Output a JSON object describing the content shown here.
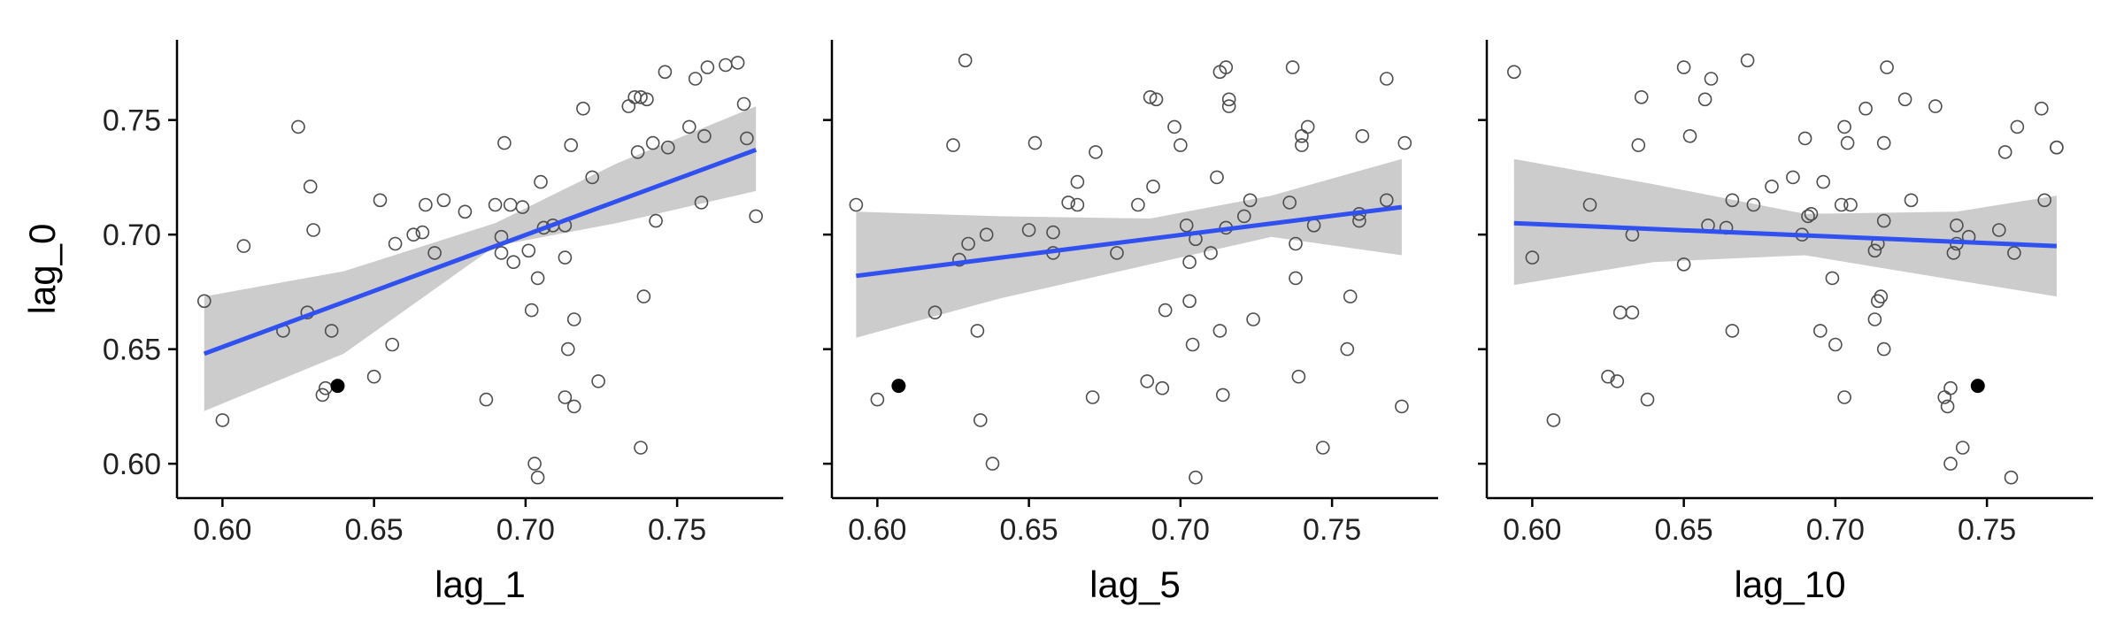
{
  "chart_data": [
    {
      "type": "scatter",
      "xlabel": "lag_1",
      "ylabel": "lag_0",
      "xlim": [
        0.585,
        0.785
      ],
      "ylim": [
        0.585,
        0.785
      ],
      "x_ticks": [
        "0.60",
        "0.65",
        "0.70",
        "0.75"
      ],
      "y_ticks": [
        "0.60",
        "0.65",
        "0.70",
        "0.75"
      ],
      "grid": false,
      "colors": {
        "points": "#4d4d4d",
        "highlight": "#000000",
        "fit": "#3050f0",
        "ribbon": "#cccccc"
      },
      "points": [
        [
          0.594,
          0.671
        ],
        [
          0.6,
          0.619
        ],
        [
          0.607,
          0.695
        ],
        [
          0.62,
          0.658
        ],
        [
          0.625,
          0.747
        ],
        [
          0.628,
          0.666
        ],
        [
          0.629,
          0.721
        ],
        [
          0.63,
          0.702
        ],
        [
          0.633,
          0.63
        ],
        [
          0.634,
          0.633
        ],
        [
          0.636,
          0.658
        ],
        [
          0.65,
          0.638
        ],
        [
          0.652,
          0.715
        ],
        [
          0.656,
          0.652
        ],
        [
          0.657,
          0.696
        ],
        [
          0.663,
          0.7
        ],
        [
          0.666,
          0.701
        ],
        [
          0.667,
          0.713
        ],
        [
          0.67,
          0.692
        ],
        [
          0.673,
          0.715
        ],
        [
          0.68,
          0.71
        ],
        [
          0.687,
          0.628
        ],
        [
          0.69,
          0.713
        ],
        [
          0.692,
          0.692
        ],
        [
          0.692,
          0.699
        ],
        [
          0.693,
          0.74
        ],
        [
          0.695,
          0.713
        ],
        [
          0.696,
          0.688
        ],
        [
          0.699,
          0.712
        ],
        [
          0.701,
          0.693
        ],
        [
          0.702,
          0.667
        ],
        [
          0.703,
          0.6
        ],
        [
          0.704,
          0.681
        ],
        [
          0.704,
          0.594
        ],
        [
          0.705,
          0.723
        ],
        [
          0.706,
          0.703
        ],
        [
          0.709,
          0.704
        ],
        [
          0.713,
          0.704
        ],
        [
          0.713,
          0.69
        ],
        [
          0.713,
          0.629
        ],
        [
          0.714,
          0.65
        ],
        [
          0.715,
          0.739
        ],
        [
          0.716,
          0.663
        ],
        [
          0.716,
          0.625
        ],
        [
          0.719,
          0.755
        ],
        [
          0.722,
          0.725
        ],
        [
          0.724,
          0.636
        ],
        [
          0.734,
          0.756
        ],
        [
          0.736,
          0.76
        ],
        [
          0.737,
          0.736
        ],
        [
          0.738,
          0.607
        ],
        [
          0.738,
          0.76
        ],
        [
          0.739,
          0.673
        ],
        [
          0.74,
          0.759
        ],
        [
          0.742,
          0.74
        ],
        [
          0.743,
          0.706
        ],
        [
          0.746,
          0.771
        ],
        [
          0.747,
          0.738
        ],
        [
          0.754,
          0.747
        ],
        [
          0.756,
          0.768
        ],
        [
          0.758,
          0.714
        ],
        [
          0.759,
          0.743
        ],
        [
          0.76,
          0.773
        ],
        [
          0.766,
          0.774
        ],
        [
          0.77,
          0.775
        ],
        [
          0.772,
          0.757
        ],
        [
          0.773,
          0.742
        ],
        [
          0.776,
          0.708
        ]
      ],
      "highlight": [
        0.638,
        0.634
      ],
      "fit": {
        "x": [
          0.594,
          0.776
        ],
        "y": [
          0.648,
          0.737
        ]
      },
      "ribbon": {
        "x": [
          0.594,
          0.64,
          0.69,
          0.73,
          0.776
        ],
        "upper": [
          0.673,
          0.684,
          0.705,
          0.731,
          0.756
        ],
        "lower": [
          0.623,
          0.648,
          0.695,
          0.705,
          0.719
        ]
      }
    },
    {
      "type": "scatter",
      "xlabel": "lag_5",
      "ylabel": "",
      "xlim": [
        0.585,
        0.785
      ],
      "ylim": [
        0.585,
        0.785
      ],
      "x_ticks": [
        "0.60",
        "0.65",
        "0.70",
        "0.75"
      ],
      "y_ticks": [
        "0.60",
        "0.65",
        "0.70",
        "0.75"
      ],
      "grid": false,
      "colors": {
        "points": "#4d4d4d",
        "highlight": "#000000",
        "fit": "#3050f0",
        "ribbon": "#cccccc"
      },
      "points": [
        [
          0.593,
          0.713
        ],
        [
          0.6,
          0.628
        ],
        [
          0.619,
          0.666
        ],
        [
          0.625,
          0.739
        ],
        [
          0.627,
          0.689
        ],
        [
          0.629,
          0.776
        ],
        [
          0.63,
          0.696
        ],
        [
          0.633,
          0.658
        ],
        [
          0.634,
          0.619
        ],
        [
          0.636,
          0.7
        ],
        [
          0.638,
          0.6
        ],
        [
          0.65,
          0.702
        ],
        [
          0.652,
          0.74
        ],
        [
          0.658,
          0.692
        ],
        [
          0.658,
          0.701
        ],
        [
          0.663,
          0.714
        ],
        [
          0.666,
          0.713
        ],
        [
          0.666,
          0.723
        ],
        [
          0.671,
          0.629
        ],
        [
          0.672,
          0.736
        ],
        [
          0.679,
          0.692
        ],
        [
          0.686,
          0.713
        ],
        [
          0.689,
          0.636
        ],
        [
          0.69,
          0.76
        ],
        [
          0.691,
          0.721
        ],
        [
          0.692,
          0.759
        ],
        [
          0.694,
          0.633
        ],
        [
          0.695,
          0.667
        ],
        [
          0.698,
          0.747
        ],
        [
          0.7,
          0.739
        ],
        [
          0.702,
          0.704
        ],
        [
          0.703,
          0.688
        ],
        [
          0.703,
          0.671
        ],
        [
          0.704,
          0.652
        ],
        [
          0.705,
          0.698
        ],
        [
          0.705,
          0.594
        ],
        [
          0.71,
          0.692
        ],
        [
          0.712,
          0.725
        ],
        [
          0.713,
          0.771
        ],
        [
          0.713,
          0.658
        ],
        [
          0.714,
          0.63
        ],
        [
          0.715,
          0.703
        ],
        [
          0.715,
          0.773
        ],
        [
          0.716,
          0.756
        ],
        [
          0.716,
          0.759
        ],
        [
          0.721,
          0.708
        ],
        [
          0.723,
          0.715
        ],
        [
          0.724,
          0.663
        ],
        [
          0.736,
          0.714
        ],
        [
          0.737,
          0.773
        ],
        [
          0.738,
          0.696
        ],
        [
          0.738,
          0.681
        ],
        [
          0.739,
          0.638
        ],
        [
          0.74,
          0.743
        ],
        [
          0.74,
          0.739
        ],
        [
          0.742,
          0.747
        ],
        [
          0.744,
          0.704
        ],
        [
          0.747,
          0.607
        ],
        [
          0.755,
          0.65
        ],
        [
          0.756,
          0.673
        ],
        [
          0.759,
          0.706
        ],
        [
          0.759,
          0.709
        ],
        [
          0.76,
          0.743
        ],
        [
          0.768,
          0.768
        ],
        [
          0.768,
          0.715
        ],
        [
          0.773,
          0.625
        ],
        [
          0.774,
          0.74
        ]
      ],
      "highlight": [
        0.607,
        0.634
      ],
      "fit": {
        "x": [
          0.593,
          0.773
        ],
        "y": [
          0.682,
          0.712
        ]
      },
      "ribbon": {
        "x": [
          0.593,
          0.64,
          0.69,
          0.73,
          0.773
        ],
        "upper": [
          0.71,
          0.708,
          0.707,
          0.717,
          0.733
        ],
        "lower": [
          0.655,
          0.672,
          0.687,
          0.699,
          0.691
        ]
      }
    },
    {
      "type": "scatter",
      "xlabel": "lag_10",
      "ylabel": "",
      "xlim": [
        0.585,
        0.785
      ],
      "ylim": [
        0.585,
        0.785
      ],
      "x_ticks": [
        "0.60",
        "0.65",
        "0.70",
        "0.75"
      ],
      "y_ticks": [
        "0.60",
        "0.65",
        "0.70",
        "0.75"
      ],
      "grid": false,
      "colors": {
        "points": "#4d4d4d",
        "highlight": "#000000",
        "fit": "#3050f0",
        "ribbon": "#cccccc"
      },
      "points": [
        [
          0.594,
          0.771
        ],
        [
          0.6,
          0.69
        ],
        [
          0.607,
          0.619
        ],
        [
          0.619,
          0.713
        ],
        [
          0.625,
          0.638
        ],
        [
          0.628,
          0.636
        ],
        [
          0.629,
          0.666
        ],
        [
          0.633,
          0.666
        ],
        [
          0.633,
          0.7
        ],
        [
          0.635,
          0.739
        ],
        [
          0.636,
          0.76
        ],
        [
          0.638,
          0.628
        ],
        [
          0.65,
          0.773
        ],
        [
          0.65,
          0.687
        ],
        [
          0.652,
          0.743
        ],
        [
          0.657,
          0.759
        ],
        [
          0.658,
          0.704
        ],
        [
          0.659,
          0.768
        ],
        [
          0.664,
          0.703
        ],
        [
          0.666,
          0.715
        ],
        [
          0.666,
          0.658
        ],
        [
          0.671,
          0.776
        ],
        [
          0.673,
          0.713
        ],
        [
          0.679,
          0.721
        ],
        [
          0.686,
          0.725
        ],
        [
          0.689,
          0.7
        ],
        [
          0.69,
          0.742
        ],
        [
          0.691,
          0.708
        ],
        [
          0.692,
          0.709
        ],
        [
          0.695,
          0.658
        ],
        [
          0.696,
          0.723
        ],
        [
          0.699,
          0.681
        ],
        [
          0.7,
          0.652
        ],
        [
          0.702,
          0.713
        ],
        [
          0.703,
          0.629
        ],
        [
          0.703,
          0.747
        ],
        [
          0.704,
          0.74
        ],
        [
          0.705,
          0.713
        ],
        [
          0.71,
          0.755
        ],
        [
          0.713,
          0.663
        ],
        [
          0.713,
          0.693
        ],
        [
          0.714,
          0.696
        ],
        [
          0.714,
          0.671
        ],
        [
          0.715,
          0.673
        ],
        [
          0.716,
          0.74
        ],
        [
          0.716,
          0.65
        ],
        [
          0.716,
          0.706
        ],
        [
          0.717,
          0.773
        ],
        [
          0.723,
          0.759
        ],
        [
          0.725,
          0.715
        ],
        [
          0.733,
          0.756
        ],
        [
          0.736,
          0.629
        ],
        [
          0.737,
          0.625
        ],
        [
          0.738,
          0.6
        ],
        [
          0.738,
          0.633
        ],
        [
          0.739,
          0.692
        ],
        [
          0.74,
          0.696
        ],
        [
          0.74,
          0.704
        ],
        [
          0.742,
          0.607
        ],
        [
          0.744,
          0.699
        ],
        [
          0.754,
          0.702
        ],
        [
          0.756,
          0.736
        ],
        [
          0.758,
          0.594
        ],
        [
          0.759,
          0.692
        ],
        [
          0.76,
          0.747
        ],
        [
          0.768,
          0.755
        ],
        [
          0.769,
          0.715
        ],
        [
          0.773,
          0.738
        ],
        [
          0.773,
          0.738
        ]
      ],
      "highlight": [
        0.747,
        0.634
      ],
      "fit": {
        "x": [
          0.594,
          0.773
        ],
        "y": [
          0.705,
          0.695
        ]
      },
      "ribbon": {
        "x": [
          0.594,
          0.64,
          0.69,
          0.74,
          0.773
        ],
        "upper": [
          0.733,
          0.722,
          0.709,
          0.71,
          0.717
        ],
        "lower": [
          0.678,
          0.688,
          0.691,
          0.68,
          0.673
        ]
      }
    }
  ]
}
